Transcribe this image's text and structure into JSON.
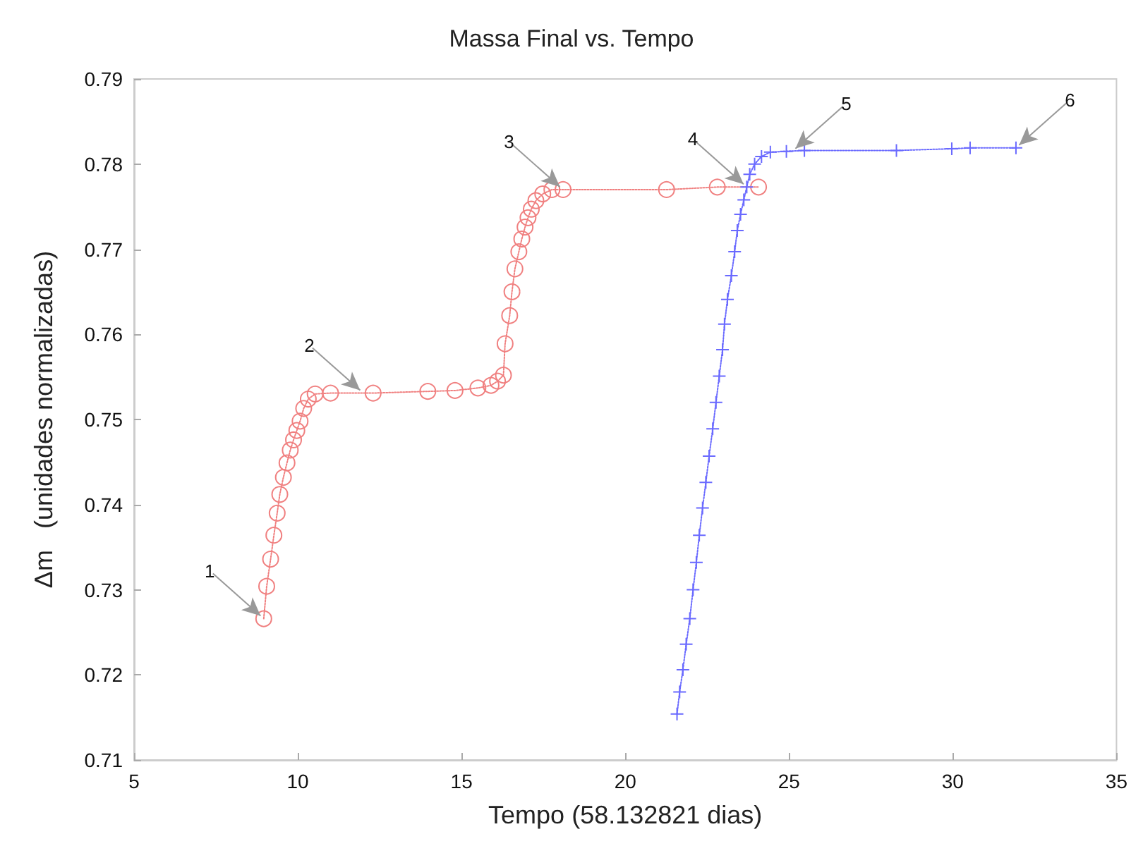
{
  "chart_data": {
    "type": "line",
    "title": "Massa Final vs. Tempo",
    "xlabel": "Tempo (58.132821 dias)",
    "ylabel": "Δm   (unidades normalizadas)",
    "xlim": [
      5,
      35
    ],
    "xticks": [
      5,
      10,
      15,
      20,
      25,
      30,
      35
    ],
    "ylim": [
      0.71,
      0.79
    ],
    "yticks": [
      0.71,
      0.72,
      0.73,
      0.74,
      0.75,
      0.76,
      0.77,
      0.78,
      0.79
    ],
    "grid": false,
    "line_style": "dotted",
    "series": [
      {
        "color": "#f08080",
        "marker": "circle",
        "x": [
          8.96,
          9.05,
          9.17,
          9.27,
          9.37,
          9.45,
          9.56,
          9.67,
          9.77,
          9.87,
          9.97,
          10.07,
          10.18,
          10.32,
          10.53,
          11.0,
          12.3,
          13.97,
          14.8,
          15.5,
          15.9,
          16.1,
          16.28,
          16.33,
          16.47,
          16.54,
          16.63,
          16.75,
          16.84,
          16.94,
          17.03,
          17.13,
          17.27,
          17.48,
          17.76,
          18.1,
          21.26,
          22.81,
          24.07
        ],
        "values": [
          0.7266,
          0.7304,
          0.7336,
          0.7364,
          0.739,
          0.7412,
          0.7432,
          0.7449,
          0.7464,
          0.7476,
          0.7487,
          0.7498,
          0.7513,
          0.7524,
          0.753,
          0.7531,
          0.7531,
          0.7533,
          0.7534,
          0.7537,
          0.754,
          0.7545,
          0.7552,
          0.7589,
          0.7622,
          0.765,
          0.7677,
          0.7697,
          0.7712,
          0.7726,
          0.7737,
          0.7747,
          0.7757,
          0.7765,
          0.777,
          0.777,
          0.777,
          0.7773,
          0.7773
        ]
      },
      {
        "color": "#6a6aff",
        "marker": "cross",
        "x": [
          21.58,
          21.66,
          21.76,
          21.86,
          21.97,
          22.07,
          22.17,
          22.26,
          22.36,
          22.46,
          22.56,
          22.67,
          22.77,
          22.87,
          22.97,
          23.03,
          23.12,
          23.24,
          23.34,
          23.42,
          23.52,
          23.62,
          23.71,
          23.8,
          23.95,
          24.16,
          24.43,
          24.92,
          25.47,
          28.28,
          29.97,
          30.53,
          31.93
        ],
        "values": [
          0.7154,
          0.718,
          0.7206,
          0.7236,
          0.7266,
          0.73,
          0.7332,
          0.7364,
          0.7396,
          0.7426,
          0.7457,
          0.7489,
          0.752,
          0.7551,
          0.7582,
          0.7612,
          0.7641,
          0.7669,
          0.7697,
          0.7722,
          0.7741,
          0.7758,
          0.7773,
          0.7788,
          0.78,
          0.7809,
          0.7814,
          0.7815,
          0.7816,
          0.7816,
          0.7818,
          0.7819,
          0.7819
        ]
      }
    ],
    "annotations": [
      {
        "text": "1",
        "x": 8.96,
        "y": 0.7266
      },
      {
        "text": "2",
        "x": 12.0,
        "y": 0.7531
      },
      {
        "text": "3",
        "x": 18.1,
        "y": 0.777
      },
      {
        "text": "4",
        "x": 23.71,
        "y": 0.7773
      },
      {
        "text": "5",
        "x": 25.1,
        "y": 0.7815
      },
      {
        "text": "6",
        "x": 31.93,
        "y": 0.7819
      }
    ]
  }
}
